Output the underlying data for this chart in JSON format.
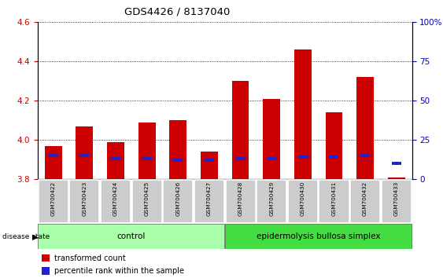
{
  "title": "GDS4426 / 8137040",
  "samples": [
    "GSM700422",
    "GSM700423",
    "GSM700424",
    "GSM700425",
    "GSM700426",
    "GSM700427",
    "GSM700428",
    "GSM700429",
    "GSM700430",
    "GSM700431",
    "GSM700432",
    "GSM700433"
  ],
  "transformed_count": [
    3.97,
    4.07,
    3.99,
    4.09,
    4.1,
    3.94,
    4.3,
    4.21,
    4.46,
    4.14,
    4.32,
    3.81
  ],
  "percentile_rank": [
    15,
    15,
    13,
    13,
    12,
    12,
    13,
    13,
    14,
    14,
    15,
    10
  ],
  "ymin": 3.8,
  "ymax": 4.6,
  "y_ticks_left": [
    3.8,
    4.0,
    4.2,
    4.4,
    4.6
  ],
  "y_ticks_right": [
    0,
    25,
    50,
    75,
    100
  ],
  "bar_color_red": "#CC0000",
  "bar_color_blue": "#2222CC",
  "left_tick_color": "#CC0000",
  "right_tick_color": "#0000BB",
  "title_color": "#000000",
  "control_count": 6,
  "disease_count": 6,
  "control_label": "control",
  "disease_label": "epidermolysis bullosa simplex",
  "legend_label_red": "transformed count",
  "legend_label_blue": "percentile rank within the sample",
  "disease_state_label": "disease state",
  "control_bg": "#AAFFAA",
  "disease_bg": "#44DD44",
  "xticklabel_bg": "#CCCCCC"
}
